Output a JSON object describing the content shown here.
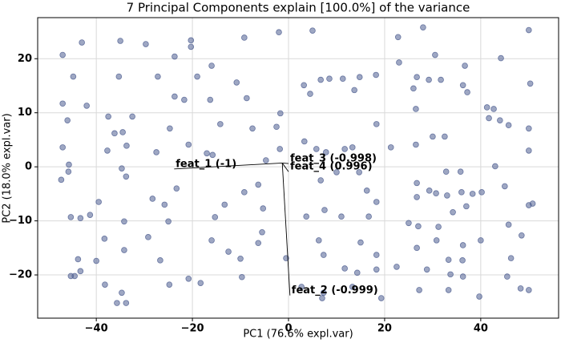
{
  "chart_data": {
    "type": "scatter",
    "title": "7 Principal Components explain [100.0%] of the variance",
    "xlabel": "PC1 (76.6% expl.var)",
    "ylabel": "PC2 (18.0% expl.var)",
    "xlim": [
      -52.2,
      56.2
    ],
    "ylim": [
      -28,
      27.6
    ],
    "xticks": [
      {
        "value": -40,
        "label": "−40"
      },
      {
        "value": -20,
        "label": "−20"
      },
      0,
      20,
      40
    ],
    "yticks": [
      {
        "value": -20,
        "label": "−20"
      },
      {
        "value": -10,
        "label": "−10"
      },
      0,
      10,
      20
    ],
    "grid": true,
    "x": [
      -47,
      -43,
      -35,
      -29.7,
      -20.3,
      -20.3,
      -23.7,
      -9.2,
      -2,
      5,
      22.8,
      28,
      50,
      30.5,
      44.2,
      36.7,
      23,
      -16,
      -44.8,
      -35.3,
      -27.2,
      -19,
      -10.8,
      -8.7,
      3.2,
      6.7,
      8.5,
      11.3,
      14.8,
      18.2,
      26.7,
      29.2,
      31.7,
      36.3,
      37.2,
      50.3,
      26,
      13.7,
      4.5,
      -16.3,
      -23.7,
      -21.7,
      -47,
      -42,
      -37.5,
      -32.5,
      -46,
      -24.7,
      -36.2,
      -34.5,
      -33.7,
      -37.7,
      -47,
      -45.7,
      -45.8,
      -47.3,
      -14.2,
      -7.5,
      -1.7,
      -2.5,
      -1.8,
      3.3,
      5.8,
      7.8,
      11.7,
      13.3,
      18.3,
      21.3,
      26.5,
      30,
      32.5,
      26.5,
      41.3,
      42.7,
      44,
      41.7,
      45.8,
      50,
      50,
      43,
      45,
      35.8,
      32.8,
      26.7,
      29.3,
      26.7,
      30.7,
      33,
      36,
      38.3,
      40.2,
      37,
      50.8,
      50,
      -17,
      -15.8,
      -20.8,
      -27.5,
      -34.7,
      -33.8,
      -23.3,
      -28.3,
      -25.8,
      -39.5,
      -41.3,
      -45.3,
      -43.3,
      -34.2,
      -25,
      -15.3,
      -13.3,
      -9.2,
      -6.3,
      -5.3,
      -4.7,
      6.7,
      10,
      14.7,
      16.3,
      18.3,
      7.5,
      3.7,
      11,
      16.7,
      25,
      27,
      31.2,
      34.2,
      48.5,
      45.8,
      -38.3,
      -34.2,
      -29.2,
      -26.7,
      -16,
      -12.5,
      -10,
      -5.5,
      -6.3,
      6.3,
      7.3,
      15,
      11.7,
      14.3,
      18.3,
      18.3,
      26.7,
      30.8,
      36.3,
      33.3,
      36.2,
      40,
      46.3,
      22.5,
      28.8,
      -43.8,
      -40,
      -45.3,
      -44.5,
      -43.3,
      -38.2,
      -34.7,
      -35.7,
      -33.8,
      -24.8,
      -20.8,
      -18.3,
      -9.7,
      -0.5,
      2.7,
      7.3,
      7,
      13.3,
      19.3,
      33.7,
      36.3,
      33.3,
      45.5,
      48.3,
      50,
      39.7,
      27.2
    ],
    "series": [
      {
        "color": "#4f5f91",
        "values": [
          20.7,
          23,
          23.3,
          22.7,
          23.4,
          22.2,
          20.4,
          23.9,
          24.9,
          25.2,
          24,
          25.8,
          25.3,
          20.7,
          20.1,
          18.7,
          19.3,
          18.7,
          16.7,
          16.7,
          16.7,
          16.7,
          15.6,
          12.7,
          15.1,
          16.1,
          16.3,
          16.3,
          16.6,
          17,
          16.6,
          16.1,
          16.1,
          15.1,
          13.8,
          15.4,
          14.5,
          14.2,
          13.5,
          12.4,
          13,
          12.4,
          11.7,
          11.3,
          9.3,
          9.3,
          8.6,
          7.1,
          6.2,
          6.4,
          3.9,
          3,
          3.6,
          0.4,
          -0.9,
          -2.4,
          7.9,
          7.1,
          9.9,
          7.4,
          3.3,
          4.7,
          3.3,
          2.7,
          3.3,
          3.6,
          7.9,
          3.6,
          4.1,
          5.6,
          5.6,
          10.7,
          11,
          10.7,
          8.6,
          9,
          7.7,
          7.1,
          3,
          0.1,
          -3.6,
          -0.9,
          -0.9,
          -3,
          -4.4,
          -5.6,
          -4.9,
          -5.3,
          -4.7,
          -5,
          -4.7,
          -7.3,
          -6.8,
          -7.1,
          2.5,
          2.2,
          4.1,
          2.7,
          -0.3,
          -1.8,
          -4,
          -5.9,
          -7,
          -6.5,
          -8.9,
          -9.3,
          -9.5,
          -10.1,
          -10.1,
          -9.3,
          -7,
          -4.7,
          -3.3,
          -7.7,
          1.2,
          -2.5,
          -1,
          -1,
          -4.4,
          -6.5,
          -8,
          -9.2,
          -9.2,
          -9.2,
          -10.4,
          -11,
          -11.1,
          -8.4,
          -12.7,
          -10.7,
          -13.3,
          -15.4,
          -13,
          -17.3,
          -13.6,
          -15.7,
          -17,
          -12.1,
          -14.1,
          -13.6,
          -16.3,
          -14,
          -18.8,
          -19.6,
          -19,
          -16.3,
          -15,
          -13.6,
          -14.5,
          -17.2,
          -17.3,
          -13.6,
          -16.9,
          -18.5,
          -19,
          -17.1,
          -17.4,
          -20.2,
          -20.2,
          -19.3,
          -21.8,
          -23.3,
          -25.2,
          -25.2,
          -21.8,
          -20.7,
          -21.5,
          -20.4,
          -16.9,
          -22.2,
          -23.3,
          -24.3,
          -22.2,
          -24.3,
          -19.9,
          -20.3,
          -22.8,
          -20.3,
          -22.5,
          -22.8,
          -24,
          -22.8
        ]
      }
    ],
    "loading_origin": [
      -1.3,
      0.7
    ],
    "loadings": [
      {
        "label": "feat_1 (-1)",
        "x": -23.8,
        "y": -0.4
      },
      {
        "label": "feat_3 (-0.998)",
        "x": 0,
        "y": 0.6
      },
      {
        "label": "feat_4 (0.996)",
        "x": 0,
        "y": -0.9
      },
      {
        "label": "feat_2 (-0.999)",
        "x": 0.3,
        "y": -23.8
      }
    ]
  }
}
